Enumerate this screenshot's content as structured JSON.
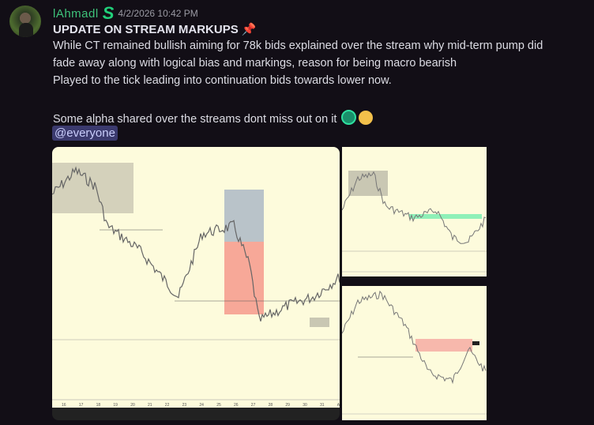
{
  "message": {
    "author": "lAhmadl",
    "badge_icon": "server-tag-s-icon",
    "timestamp": "4/2/2026 10:42 PM",
    "title": "UPDATE ON STREAM MARKUPS",
    "title_emoji": "pushpin-icon",
    "lines": [
      "While CT remained bullish aiming for 78k bids explained over the stream why mid-term pump did",
      "fade away along with logical bias and markings, reason for being macro bearish",
      "Played to the tick leading into continuation bids towards lower now.",
      "Some alpha shared over the streams dont miss out on it"
    ],
    "line_emojis": [
      "coin-logo-icon",
      "saluting-face-icon"
    ],
    "mention": "@everyone",
    "colors": {
      "author": "#3ec27a",
      "mention_bg": "#3b3a6e",
      "chart_bg": "#fdfbdc"
    }
  },
  "attachments": {
    "main_chart": {
      "x_ticks": [
        "16",
        "17",
        "18",
        "19",
        "20",
        "21",
        "22",
        "23",
        "24",
        "25",
        "26",
        "27",
        "28",
        "29",
        "30",
        "31",
        "Apr"
      ]
    }
  }
}
